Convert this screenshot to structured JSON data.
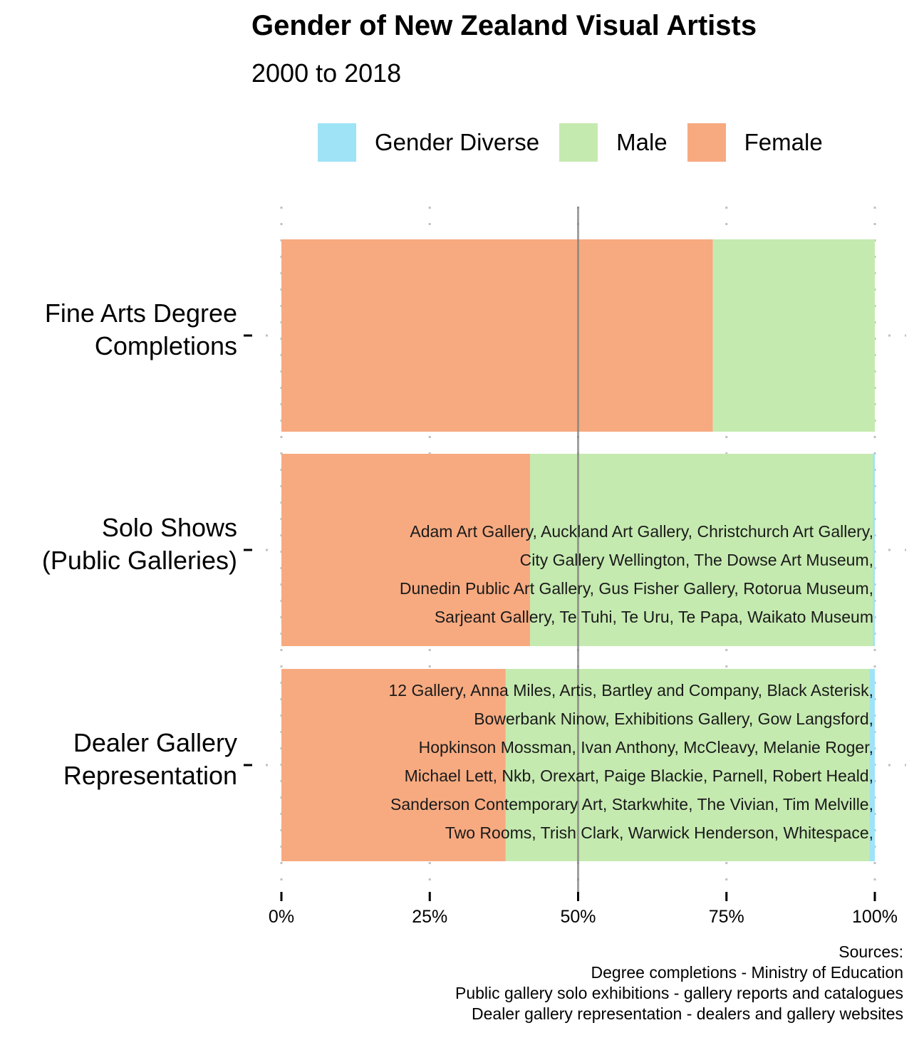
{
  "title": "Gender of New Zealand Visual Artists",
  "subtitle": "2000 to 2018",
  "colors": {
    "gender_diverse": "#9fe3f7",
    "male": "#c5eab0",
    "female": "#f7aa80",
    "reference_line": "#808080",
    "grid": "#c0c0c0"
  },
  "legend": [
    {
      "label": "Gender Diverse",
      "color": "#9fe3f7"
    },
    {
      "label": "Male",
      "color": "#c5eab0"
    },
    {
      "label": "Female",
      "color": "#f7aa80"
    }
  ],
  "chart_data": {
    "type": "bar",
    "orientation": "horizontal",
    "stacked": true,
    "categories": [
      [
        "Fine Arts Degree",
        "Completions"
      ],
      [
        "Solo Shows",
        "(Public Galleries)"
      ],
      [
        "Dealer Gallery",
        "Representation"
      ]
    ],
    "series": [
      {
        "name": "Female",
        "values": [
          72.7,
          41.9,
          37.8
        ]
      },
      {
        "name": "Male",
        "values": [
          27.3,
          57.8,
          61.3
        ]
      },
      {
        "name": "Gender Diverse",
        "values": [
          0.0,
          0.3,
          0.9
        ]
      }
    ],
    "xlim": [
      0,
      100
    ],
    "xticks": [
      "0%",
      "25%",
      "50%",
      "75%",
      "100%"
    ],
    "reference_line_at": 50,
    "grid": "dotted",
    "legend_position": "top",
    "annotations": [
      [],
      [
        "Adam Art Gallery, Auckland Art Gallery, Christchurch Art Gallery,",
        "City Gallery Wellington, The Dowse Art Museum,",
        "Dunedin Public Art Gallery, Gus Fisher Gallery, Rotorua Museum,",
        "Sarjeant Gallery, Te Tuhi, Te Uru, Te Papa, Waikato Museum"
      ],
      [
        "12 Gallery, Anna Miles, Artis, Bartley and Company, Black Asterisk,",
        "Bowerbank Ninow, Exhibitions Gallery, Gow Langsford,",
        "Hopkinson Mossman, Ivan Anthony, McCleavy, Melanie Roger,",
        "Michael Lett, Nkb, Orexart, Paige Blackie, Parnell, Robert Heald,",
        "Sanderson Contemporary Art, Starkwhite, The Vivian, Tim Melville,",
        "Two Rooms, Trish Clark, Warwick Henderson, Whitespace,"
      ]
    ]
  },
  "sources": [
    "Sources:",
    "Degree completions - Ministry of Education",
    "Public gallery solo exhibitions - gallery reports and catalogues",
    "Dealer gallery representation - dealers and gallery websites"
  ]
}
